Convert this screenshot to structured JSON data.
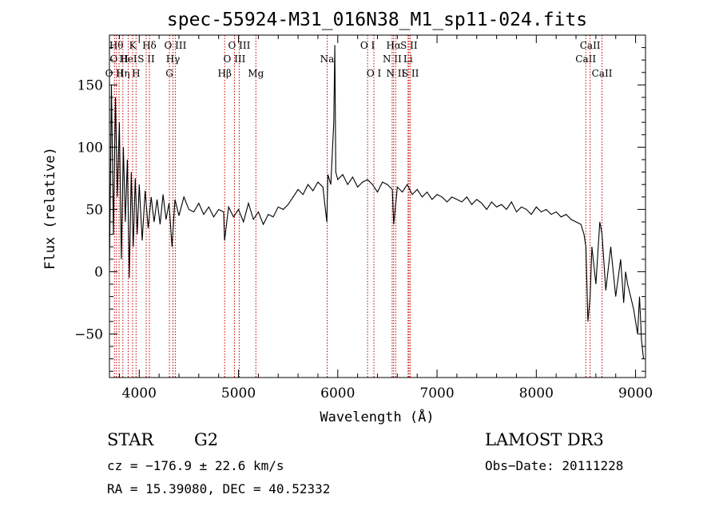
{
  "chart_data": {
    "type": "line",
    "title": "spec-55924-M31_016N38_M1_sp11-024.fits",
    "xlabel": "Wavelength (Å)",
    "ylabel": "Flux (relative)",
    "xlim": [
      3700,
      9100
    ],
    "ylim": [
      -85,
      190
    ],
    "xticks": [
      4000,
      5000,
      6000,
      7000,
      8000,
      9000
    ],
    "yticks": [
      -50,
      0,
      50,
      100,
      150
    ],
    "grid": false,
    "series": [
      {
        "name": "spectrum",
        "x": [
          3700,
          3720,
          3740,
          3760,
          3780,
          3800,
          3820,
          3840,
          3860,
          3880,
          3900,
          3920,
          3940,
          3960,
          3980,
          4000,
          4030,
          4060,
          4090,
          4120,
          4150,
          4180,
          4210,
          4240,
          4270,
          4300,
          4330,
          4360,
          4400,
          4450,
          4500,
          4550,
          4600,
          4650,
          4700,
          4750,
          4800,
          4850,
          4860,
          4900,
          4950,
          5000,
          5050,
          5100,
          5150,
          5200,
          5250,
          5300,
          5350,
          5400,
          5450,
          5500,
          5550,
          5600,
          5650,
          5700,
          5750,
          5800,
          5850,
          5890,
          5900,
          5930,
          5960,
          5970,
          5980,
          6000,
          6050,
          6100,
          6150,
          6200,
          6250,
          6300,
          6350,
          6400,
          6450,
          6500,
          6550,
          6563,
          6600,
          6650,
          6700,
          6750,
          6800,
          6850,
          6900,
          6950,
          7000,
          7050,
          7100,
          7150,
          7200,
          7250,
          7300,
          7350,
          7400,
          7450,
          7500,
          7550,
          7600,
          7650,
          7700,
          7750,
          7800,
          7850,
          7900,
          7950,
          8000,
          8050,
          8100,
          8150,
          8200,
          8250,
          8300,
          8350,
          8400,
          8450,
          8480,
          8500,
          8520,
          8542,
          8560,
          8600,
          8640,
          8662,
          8700,
          8750,
          8800,
          8850,
          8880,
          8900,
          8920,
          8950,
          8980,
          9000,
          9020,
          9040,
          9060,
          9080
        ],
        "y": [
          0,
          150,
          30,
          140,
          60,
          120,
          10,
          100,
          40,
          90,
          -5,
          80,
          20,
          75,
          30,
          70,
          25,
          65,
          35,
          60,
          40,
          58,
          38,
          62,
          42,
          55,
          20,
          58,
          45,
          60,
          50,
          48,
          55,
          46,
          52,
          44,
          50,
          48,
          25,
          52,
          44,
          50,
          40,
          55,
          42,
          48,
          38,
          46,
          44,
          52,
          50,
          54,
          60,
          66,
          62,
          70,
          65,
          72,
          68,
          40,
          78,
          70,
          120,
          182,
          80,
          74,
          78,
          70,
          76,
          68,
          72,
          74,
          70,
          64,
          72,
          70,
          66,
          38,
          68,
          64,
          70,
          62,
          66,
          60,
          64,
          58,
          62,
          60,
          56,
          60,
          58,
          56,
          60,
          54,
          58,
          55,
          50,
          56,
          52,
          54,
          50,
          56,
          48,
          52,
          50,
          46,
          52,
          48,
          50,
          46,
          48,
          44,
          46,
          42,
          40,
          38,
          30,
          20,
          -40,
          -20,
          20,
          -10,
          40,
          30,
          -15,
          20,
          -20,
          10,
          -25,
          0,
          -10,
          -20,
          -30,
          -40,
          -50,
          -20,
          -55,
          -70
        ]
      }
    ],
    "line_labels": [
      {
        "wl": 3750,
        "label": "O II",
        "row": 3
      },
      {
        "wl": 3770,
        "label": "Hθ",
        "row": 1
      },
      {
        "wl": 3797,
        "label": "O II",
        "row": 2
      },
      {
        "wl": 3835,
        "label": "Hη",
        "row": 3
      },
      {
        "wl": 3889,
        "label": "HeI",
        "row": 2
      },
      {
        "wl": 3934,
        "label": "K",
        "row": 1
      },
      {
        "wl": 3968,
        "label": "H",
        "row": 3
      },
      {
        "wl": 4070,
        "label": "S II",
        "row": 2
      },
      {
        "wl": 4102,
        "label": "Hδ",
        "row": 1
      },
      {
        "wl": 4304,
        "label": "G",
        "row": 3
      },
      {
        "wl": 4340,
        "label": "Hγ",
        "row": 2
      },
      {
        "wl": 4363,
        "label": "O III",
        "row": 1
      },
      {
        "wl": 4861,
        "label": "Hβ",
        "row": 3
      },
      {
        "wl": 4959,
        "label": "O III",
        "row": 2
      },
      {
        "wl": 5007,
        "label": "O III",
        "row": 1
      },
      {
        "wl": 5175,
        "label": "Mg",
        "row": 3
      },
      {
        "wl": 5893,
        "label": "Na",
        "row": 2
      },
      {
        "wl": 6300,
        "label": "O I",
        "row": 1
      },
      {
        "wl": 6364,
        "label": "O I",
        "row": 3
      },
      {
        "wl": 6548,
        "label": "N II",
        "row": 2
      },
      {
        "wl": 6563,
        "label": "Hα",
        "row": 1
      },
      {
        "wl": 6584,
        "label": "N II",
        "row": 3
      },
      {
        "wl": 6708,
        "label": "Li",
        "row": 2
      },
      {
        "wl": 6717,
        "label": "S II",
        "row": 1
      },
      {
        "wl": 6731,
        "label": "S II",
        "row": 3
      },
      {
        "wl": 8498,
        "label": "CaII",
        "row": 2
      },
      {
        "wl": 8542,
        "label": "CaII",
        "row": 1
      },
      {
        "wl": 8662,
        "label": "CaII",
        "row": 3
      }
    ],
    "line_color": "#c00000"
  },
  "info": {
    "object_class": "STAR",
    "subclass": "G2",
    "survey": "LAMOST DR3",
    "cz": "cz = −176.9 ± 22.6 km/s",
    "obs_date": "Obs−Date: 20111228",
    "coords": "RA =  15.39080, DEC =  40.52332"
  }
}
